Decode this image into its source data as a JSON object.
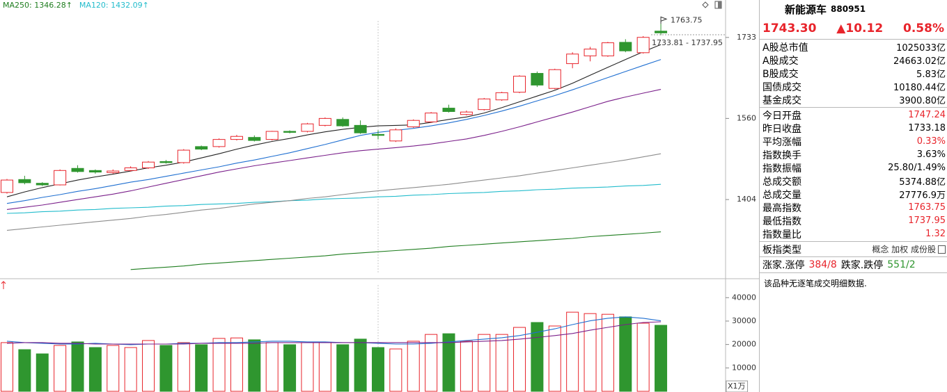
{
  "chart_data": [
    {
      "type": "candlestick",
      "log_scale": true,
      "grid": false,
      "ylim": [
        1268,
        1790
      ],
      "yticks": [
        1404,
        1560,
        1733
      ],
      "up_color": "#e8242b",
      "down_color": "#2f962f",
      "open": [
        1417,
        1441,
        1434,
        1431,
        1462,
        1458,
        1454,
        1458,
        1463,
        1475,
        1473,
        1504,
        1504,
        1518,
        1522,
        1518,
        1534,
        1534,
        1546,
        1558,
        1546,
        1528,
        1515,
        1543,
        1553,
        1581,
        1568,
        1578,
        1598,
        1614,
        1654,
        1622,
        1675,
        1692,
        1692,
        1722,
        1699,
        1747.24
      ],
      "high": [
        1442,
        1448,
        1436,
        1460,
        1468,
        1460,
        1460,
        1466,
        1476,
        1478,
        1499,
        1506,
        1520,
        1527,
        1526,
        1535,
        1536,
        1551,
        1562,
        1562,
        1556,
        1536,
        1540,
        1558,
        1573,
        1588,
        1576,
        1602,
        1615,
        1650,
        1658,
        1664,
        1700,
        1712,
        1723,
        1729,
        1736,
        1763.75
      ],
      "low": [
        1415,
        1432,
        1429,
        1430,
        1454,
        1452,
        1452,
        1456,
        1461,
        1471,
        1471,
        1497,
        1502,
        1516,
        1514,
        1516,
        1530,
        1532,
        1544,
        1543,
        1529,
        1518,
        1513,
        1541,
        1551,
        1572,
        1566,
        1576,
        1596,
        1612,
        1625,
        1620,
        1665,
        1680,
        1690,
        1700,
        1697,
        1737.95
      ],
      "close": [
        1440,
        1435,
        1431,
        1458,
        1456,
        1455,
        1457,
        1463,
        1474,
        1473,
        1497,
        1499,
        1518,
        1524,
        1516,
        1534,
        1532,
        1549,
        1560,
        1545,
        1531,
        1526,
        1537,
        1556,
        1571,
        1574,
        1573,
        1600,
        1613,
        1648,
        1629,
        1662,
        1696,
        1707,
        1721,
        1703,
        1733.18,
        1743.3
      ],
      "series": [
        {
          "name": "MA250: 1346.28↑",
          "color": "#1e7d1e",
          "values": [
            null,
            null,
            null,
            null,
            null,
            null,
            null,
            1282,
            1284,
            1286,
            1288,
            1291,
            1293,
            1295,
            1297,
            1299,
            1301,
            1303,
            1305,
            1308,
            1310,
            1312,
            1314,
            1316,
            1318,
            1321,
            1323,
            1325,
            1327,
            1329,
            1331,
            1333,
            1335,
            1338,
            1340,
            1342,
            1344,
            1346.28
          ]
        },
        {
          "name": "MA120: 1432.09↑",
          "color": "#22bccc",
          "values": [
            1379,
            1380,
            1382,
            1383,
            1385,
            1386,
            1388,
            1389,
            1390,
            1392,
            1393,
            1395,
            1396,
            1397,
            1399,
            1400,
            1402,
            1403,
            1405,
            1406,
            1407,
            1409,
            1410,
            1412,
            1413,
            1415,
            1416,
            1417,
            1419,
            1420,
            1422,
            1423,
            1425,
            1426,
            1427,
            1429,
            1430,
            1432.09
          ]
        },
        {
          "color": "#8c8c8c",
          "values": [
            1349,
            1352,
            1355,
            1358,
            1361,
            1364,
            1367,
            1370,
            1374,
            1377,
            1381,
            1385,
            1388,
            1392,
            1396,
            1399,
            1402,
            1406,
            1409,
            1413,
            1417,
            1420,
            1423,
            1426,
            1429,
            1432,
            1436,
            1440,
            1444,
            1448,
            1453,
            1458,
            1463,
            1468,
            1473,
            1478,
            1484,
            1490
          ]
        },
        {
          "color": "#7a1f8a",
          "values": [
            1386,
            1390,
            1394,
            1399,
            1404,
            1409,
            1414,
            1420,
            1427,
            1434,
            1441,
            1448,
            1455,
            1461,
            1467,
            1472,
            1477,
            1482,
            1487,
            1492,
            1496,
            1499,
            1502,
            1505,
            1509,
            1514,
            1519,
            1526,
            1534,
            1543,
            1553,
            1563,
            1573,
            1584,
            1595,
            1604,
            1612,
            1620
          ]
        },
        {
          "color": "#1f6fd1",
          "values": [
            1397,
            1402,
            1408,
            1413,
            1419,
            1424,
            1430,
            1436,
            1441,
            1447,
            1453,
            1459,
            1465,
            1472,
            1478,
            1485,
            1492,
            1500,
            1508,
            1517,
            1526,
            1532,
            1536,
            1540,
            1545,
            1551,
            1558,
            1566,
            1575,
            1585,
            1596,
            1607,
            1619,
            1632,
            1645,
            1658,
            1671,
            1684
          ]
        },
        {
          "color": "#222222",
          "values": [
            1409,
            1418,
            1426,
            1433,
            1440,
            1446,
            1451,
            1457,
            1463,
            1468,
            1474,
            1482,
            1490,
            1499,
            1507,
            1514,
            1520,
            1527,
            1533,
            1538,
            1542,
            1545,
            1546,
            1547,
            1552,
            1558,
            1563,
            1571,
            1582,
            1594,
            1606,
            1618,
            1633,
            1650,
            1667,
            1684,
            1701,
            1717
          ]
        }
      ],
      "annotations": [
        "1763.75",
        "1733.81 - 1737.95"
      ]
    },
    {
      "type": "bar",
      "ylim": [
        0,
        47500
      ],
      "yticks": [
        10000,
        20000,
        30000,
        40000
      ],
      "y_unit": "X1万",
      "values": [
        20800,
        17800,
        16000,
        19600,
        21100,
        18700,
        19600,
        18700,
        21700,
        19600,
        20800,
        19900,
        22600,
        22800,
        22000,
        20800,
        19900,
        20800,
        20800,
        19900,
        22300,
        18700,
        18100,
        21400,
        24300,
        24600,
        21400,
        24300,
        24300,
        27300,
        29400,
        27900,
        33800,
        33200,
        32900,
        31800,
        29100,
        28200
      ],
      "series": [
        {
          "color": "#1f6fd1",
          "values": [
            21400,
            20800,
            20500,
            20200,
            20200,
            20500,
            20200,
            19900,
            20200,
            20200,
            20500,
            20500,
            20800,
            20800,
            21100,
            21400,
            21400,
            21100,
            21100,
            20800,
            20800,
            20500,
            20200,
            20200,
            20500,
            21100,
            21700,
            22300,
            22900,
            23800,
            25200,
            26700,
            28500,
            30100,
            31200,
            31800,
            31200,
            30100
          ]
        },
        {
          "color": "#7a1f8a",
          "values": [
            20500,
            20800,
            20800,
            20500,
            20500,
            20200,
            20200,
            20200,
            20200,
            20200,
            20200,
            20500,
            20500,
            20500,
            20500,
            20800,
            20800,
            20800,
            20800,
            20800,
            20800,
            20800,
            20800,
            20800,
            20800,
            20800,
            21100,
            21400,
            21700,
            22300,
            23000,
            23800,
            24700,
            26100,
            27300,
            28500,
            29400,
            29700
          ]
        }
      ]
    }
  ],
  "quote_panel": {
    "name": "新能源车",
    "code": "880951",
    "price": "1743.30",
    "change": "▲10.12",
    "change_pct": "0.58%",
    "color": "#e8242b",
    "groups": [
      [
        {
          "label": "A股总市值",
          "value": "1025033亿"
        },
        {
          "label": "A股成交",
          "value": "24663.02亿"
        },
        {
          "label": "B股成交",
          "value": "5.83亿"
        },
        {
          "label": "国债成交",
          "value": "10180.44亿"
        },
        {
          "label": "基金成交",
          "value": "3900.80亿"
        }
      ],
      [
        {
          "label": "今日开盘",
          "value": "1747.24",
          "color": "#e8242b"
        },
        {
          "label": "昨日收盘",
          "value": "1733.18"
        },
        {
          "label": "平均涨幅",
          "value": "0.33%",
          "color": "#e8242b"
        },
        {
          "label": "指数换手",
          "value": "3.63%"
        },
        {
          "label": "指数振幅",
          "value": "25.80/1.49%"
        },
        {
          "label": "总成交额",
          "value": "5374.88亿"
        },
        {
          "label": "总成交量",
          "value": "27776.9万"
        },
        {
          "label": "最高指数",
          "value": "1763.75",
          "color": "#e8242b"
        },
        {
          "label": "最低指数",
          "value": "1737.95",
          "color": "#e8242b"
        },
        {
          "label": "指数量比",
          "value": "1.32",
          "color": "#e8242b"
        }
      ],
      [
        {
          "label": "板指类型",
          "value": "概念 加权 成份股"
        }
      ]
    ],
    "breadth": {
      "up_label": "涨家.涨停",
      "up_value": "384/8",
      "up_color": "#e8242b",
      "down_label": "跌家.跌停",
      "down_value": "551/2",
      "down_color": "#2f962f"
    },
    "note": "该品种无逐笔成交明细数据."
  }
}
